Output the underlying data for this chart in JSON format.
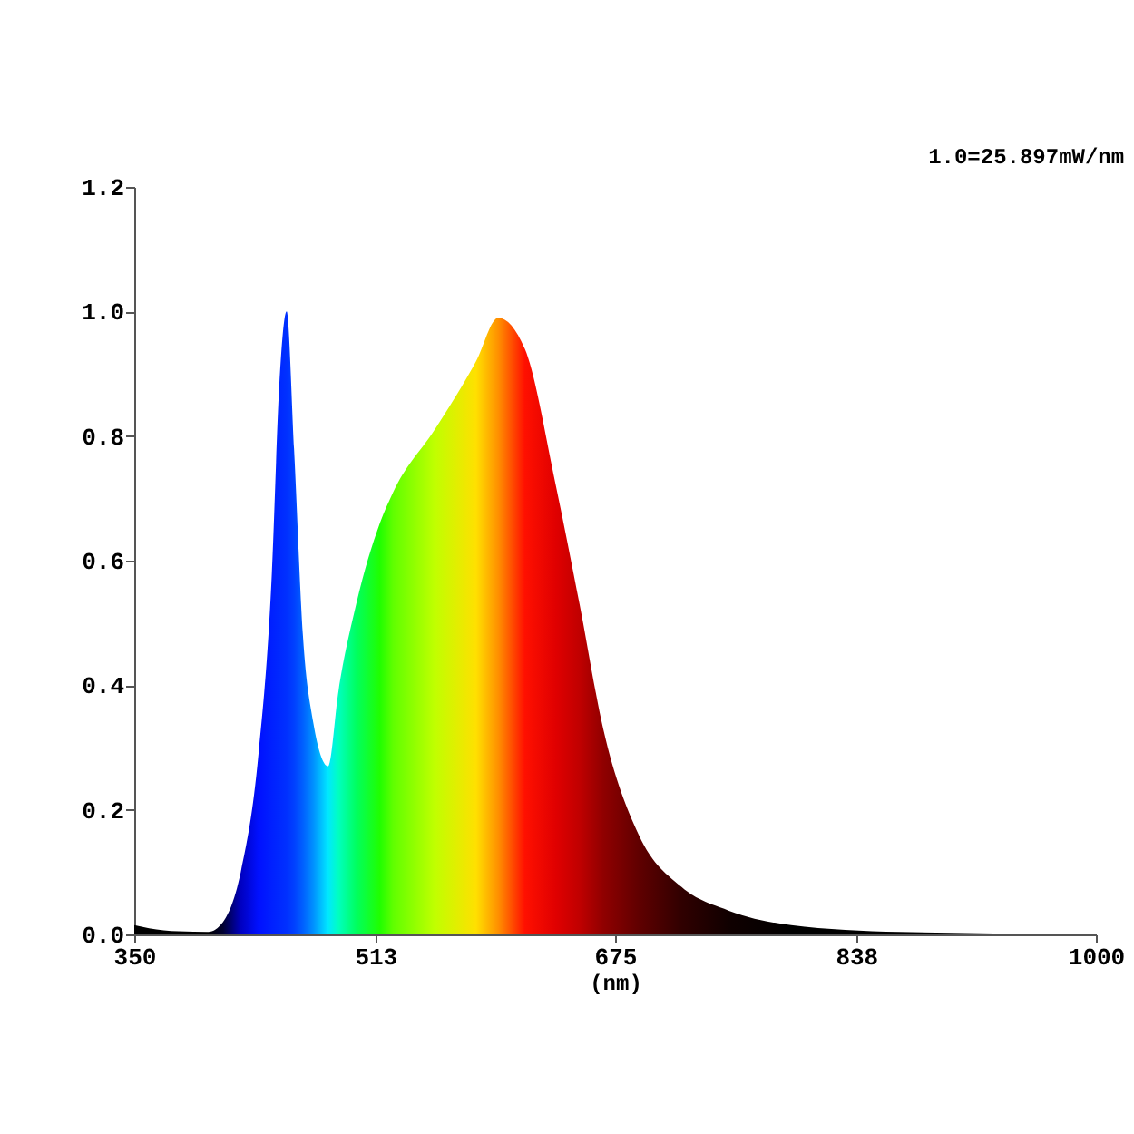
{
  "chart_data": {
    "type": "area",
    "xlabel": "(nm)",
    "annotations": [
      "1.0=25.897mW/nm"
    ],
    "xlim": [
      350,
      1000
    ],
    "ylim": [
      0,
      1.2
    ],
    "xticks": [
      350,
      513,
      675,
      838,
      1000
    ],
    "yticks": [
      {
        "value": 0,
        "label": "0.0"
      },
      {
        "value": 0.2,
        "label": "0.2"
      },
      {
        "value": 0.4,
        "label": "0.4"
      },
      {
        "value": 0.6,
        "label": "0.6"
      },
      {
        "value": 0.8,
        "label": "0.8"
      },
      {
        "value": 1,
        "label": "1.0"
      },
      {
        "value": 1.2,
        "label": "1.2"
      }
    ],
    "grid": false,
    "x": [
      350,
      360,
      380,
      400,
      410,
      422,
      434,
      443,
      448,
      453,
      458,
      464,
      471,
      481,
      488,
      500,
      516,
      525,
      553,
      581,
      596,
      614,
      635,
      651,
      667,
      691,
      720,
      752,
      794,
      867,
      1000
    ],
    "values": [
      0.015,
      0.01,
      0.005,
      0.004,
      0.02,
      0.1,
      0.29,
      0.58,
      0.88,
      1.0,
      0.78,
      0.48,
      0.34,
      0.27,
      0.39,
      0.53,
      0.66,
      0.71,
      0.81,
      0.92,
      0.99,
      0.94,
      0.72,
      0.53,
      0.33,
      0.16,
      0.076,
      0.038,
      0.015,
      0.004,
      0
    ],
    "colors": [
      "#000000",
      "#000000",
      "#000000",
      "#000000",
      "#000030",
      "#0000c0",
      "#0010ff",
      "#0020ff",
      "#0028ff",
      "#0030ff",
      "#0040ff",
      "#0060ff",
      "#0090ff",
      "#00e8ff",
      "#00ffc0",
      "#00ff60",
      "#20ff00",
      "#60ff00",
      "#c0ff00",
      "#ffe000",
      "#ff9000",
      "#ff1000",
      "#e00000",
      "#c00000",
      "#900000",
      "#600000",
      "#300000",
      "#100000",
      "#000000",
      "#000000",
      "#000000"
    ]
  }
}
